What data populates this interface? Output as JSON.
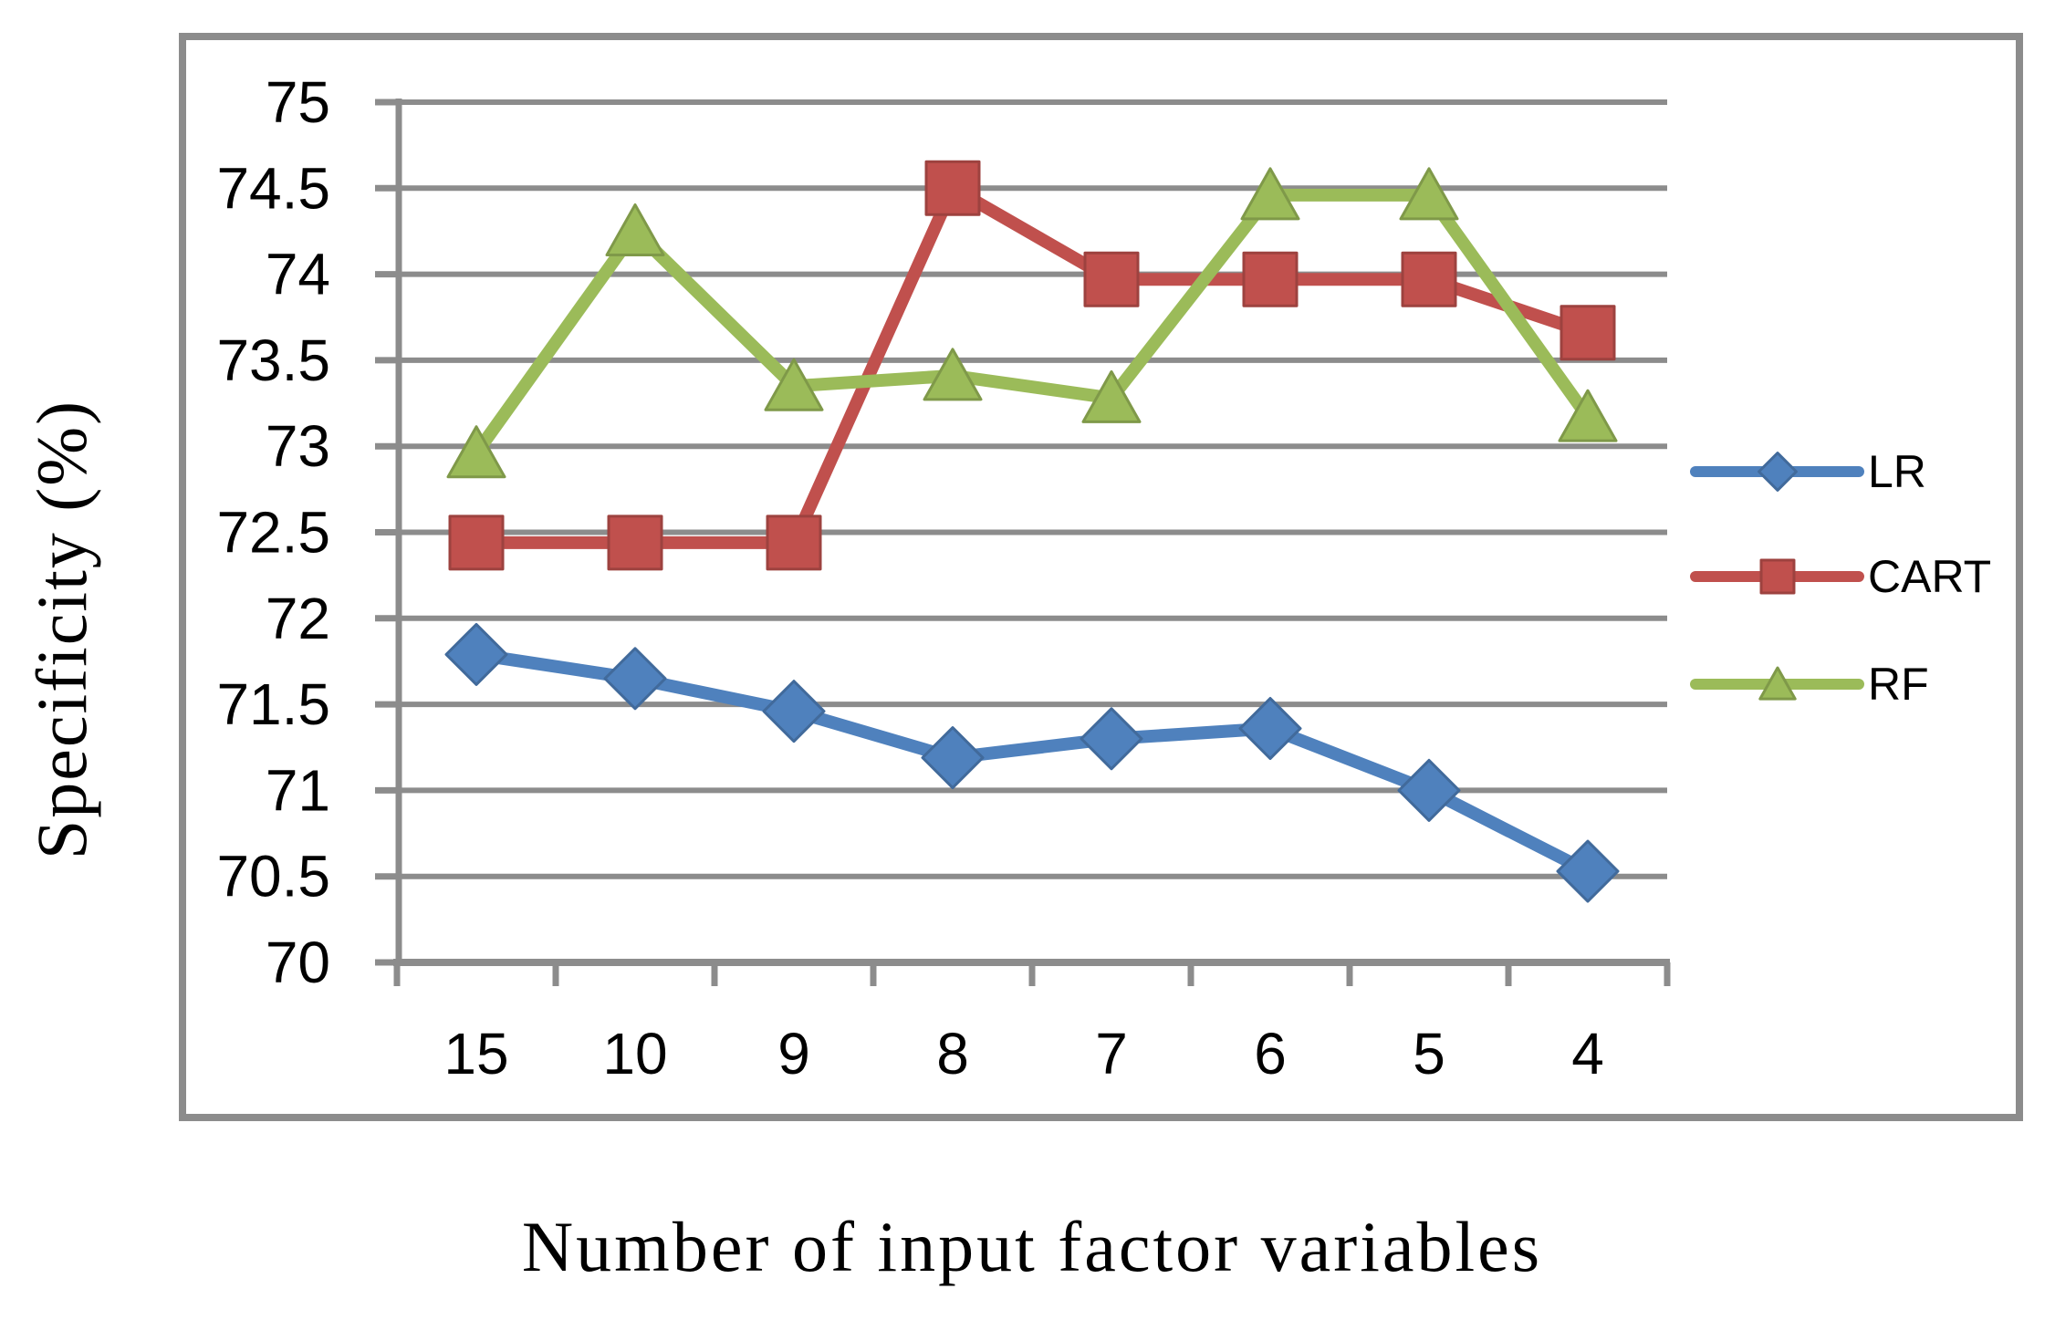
{
  "figure": {
    "x_axis_title": "Number of input factor variables",
    "y_axis_title": "Specificity (%)"
  },
  "chart_data": {
    "type": "line",
    "categories": [
      "15",
      "10",
      "9",
      "8",
      "7",
      "6",
      "5",
      "4"
    ],
    "series": [
      {
        "name": "LR",
        "color": "#4F81BD",
        "marker": "diamond",
        "values": [
          71.79,
          71.65,
          71.46,
          71.19,
          71.3,
          71.36,
          71.0,
          70.53
        ]
      },
      {
        "name": "CART",
        "color": "#C0504D",
        "marker": "square",
        "values": [
          72.44,
          72.44,
          72.44,
          74.5,
          73.97,
          73.97,
          73.97,
          73.66
        ]
      },
      {
        "name": "RF",
        "color": "#9BBB59",
        "marker": "triangle",
        "values": [
          72.96,
          74.25,
          73.35,
          73.41,
          73.28,
          74.46,
          74.46,
          73.17
        ]
      }
    ],
    "xlabel": "Number of input factor variables",
    "ylabel": "Specificity (%)",
    "ylim": [
      70,
      75
    ],
    "y_tick_step": 0.5,
    "y_tick_labels": [
      "70",
      "70.5",
      "71",
      "71.5",
      "72",
      "72.5",
      "73",
      "73.5",
      "74",
      "74.5",
      "75"
    ],
    "grid": true,
    "legend_position": "right",
    "legend_labels": [
      "LR",
      "CART",
      "RF"
    ],
    "grid_color": "#8C8C8C",
    "text_color": "#000000",
    "background_color": "#FFFFFF"
  }
}
